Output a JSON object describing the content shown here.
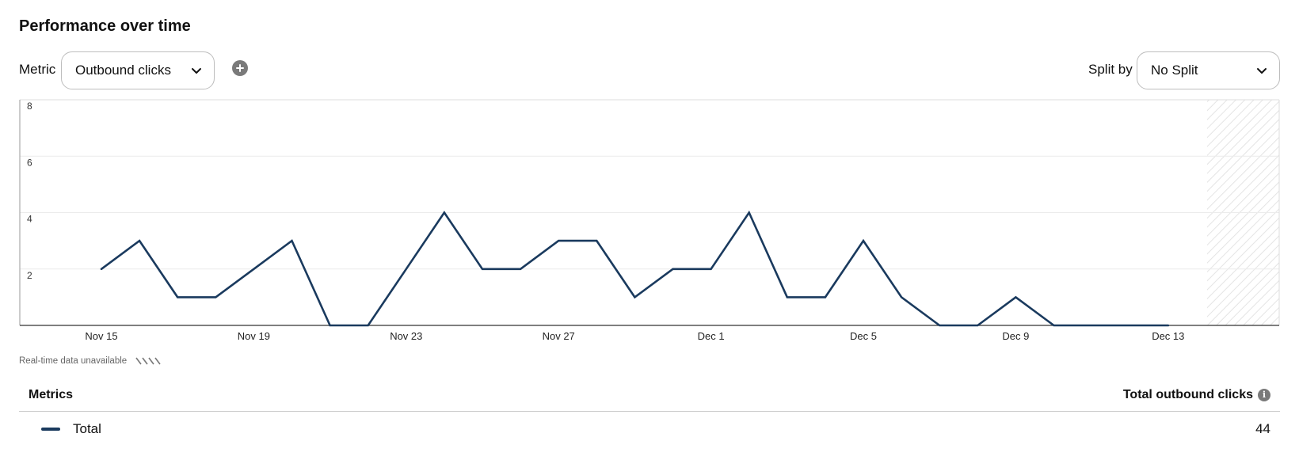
{
  "header": {
    "title": "Performance over time"
  },
  "controls": {
    "metric_label": "Metric",
    "metric_value": "Outbound clicks",
    "split_label": "Split by",
    "split_value": "No Split"
  },
  "chart_data": {
    "type": "line",
    "title": "",
    "xlabel": "",
    "ylabel": "",
    "ylim": [
      0,
      8
    ],
    "yticks": [
      2,
      4,
      6,
      8
    ],
    "grid": true,
    "line_color": "#1a3a5e",
    "x": [
      "Nov 15",
      "Nov 16",
      "Nov 17",
      "Nov 18",
      "Nov 19",
      "Nov 20",
      "Nov 21",
      "Nov 22",
      "Nov 23",
      "Nov 24",
      "Nov 25",
      "Nov 26",
      "Nov 27",
      "Nov 28",
      "Nov 29",
      "Nov 30",
      "Dec 1",
      "Dec 2",
      "Dec 3",
      "Dec 4",
      "Dec 5",
      "Dec 6",
      "Dec 7",
      "Dec 8",
      "Dec 9",
      "Dec 10",
      "Dec 11",
      "Dec 12",
      "Dec 13"
    ],
    "xtick_labels": [
      "Nov 15",
      "Nov 19",
      "Nov 23",
      "Nov 27",
      "Dec 1",
      "Dec 5",
      "Dec 9",
      "Dec 13"
    ],
    "series": [
      {
        "values": [
          2,
          3,
          1,
          1,
          2,
          3,
          0,
          0,
          2,
          4,
          2,
          2,
          3,
          3,
          1,
          2,
          2,
          4,
          1,
          1,
          3,
          1,
          0,
          0,
          1,
          0,
          0,
          0,
          0
        ]
      }
    ],
    "unavailable_region": "after Dec 14"
  },
  "chart_footer": {
    "realtime_note": "Real-time data unavailable"
  },
  "table": {
    "header_left": "Metrics",
    "header_right": "Total outbound clicks",
    "rows": [
      {
        "label": "Total",
        "value": "44"
      }
    ]
  }
}
